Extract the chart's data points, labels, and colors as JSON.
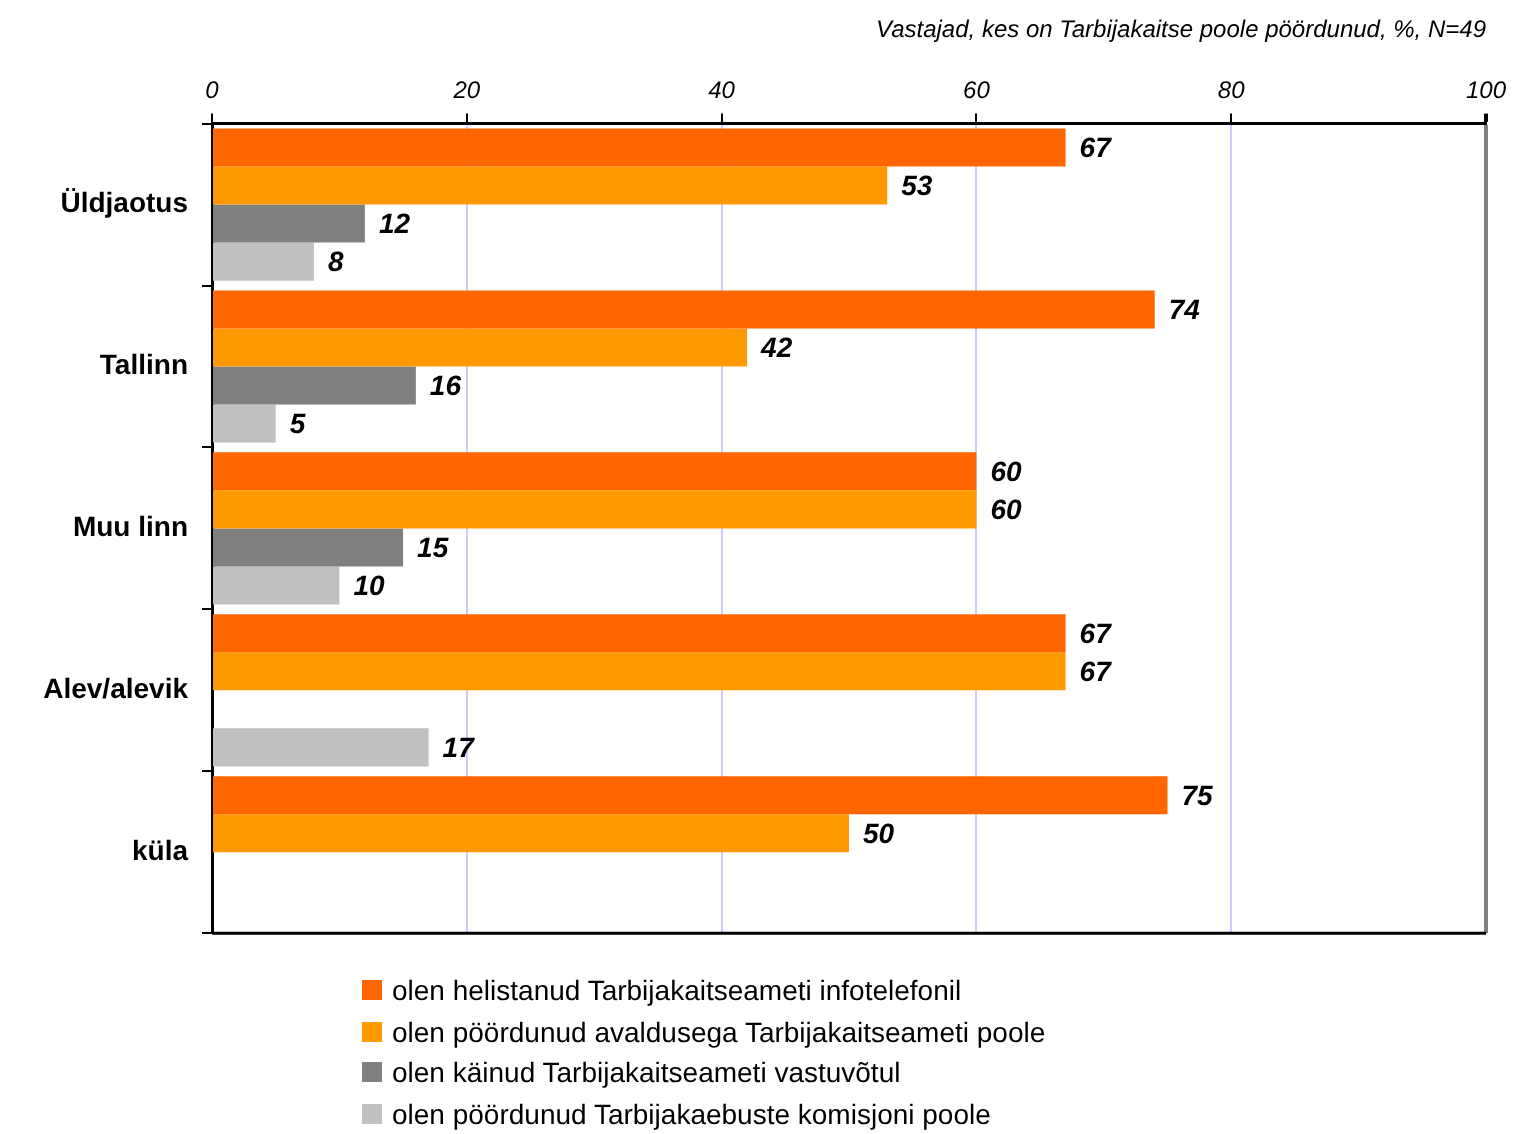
{
  "chart_data": {
    "type": "bar",
    "orientation": "horizontal",
    "title": "Vastajad, kes on Tarbijakaitse poole pöördunud, %, N=49",
    "categories": [
      "Üldjaotus",
      "Tallinn",
      "Muu linn",
      "Alev/alevik",
      "küla"
    ],
    "series": [
      {
        "name": "olen helistanud Tarbijakaitseameti infotelefonil",
        "color": "#ff6600",
        "values": [
          67,
          74,
          60,
          67,
          75
        ]
      },
      {
        "name": "olen pöördunud avaldusega Tarbijakaitseameti poole",
        "color": "#ff9900",
        "values": [
          53,
          42,
          60,
          67,
          50
        ]
      },
      {
        "name": "olen käinud Tarbijakaitseameti vastuvõtul",
        "color": "#808080",
        "values": [
          12,
          16,
          15,
          null,
          null
        ]
      },
      {
        "name": "olen pöördunud Tarbijakaebuste komisjoni poole",
        "color": "#c0c0c0",
        "values": [
          8,
          5,
          10,
          17,
          null
        ]
      }
    ],
    "xlim": [
      0,
      100
    ],
    "xticks": [
      0,
      20,
      40,
      60,
      80,
      100
    ],
    "grid": "x",
    "legend": "bottom",
    "data_labels": true
  }
}
